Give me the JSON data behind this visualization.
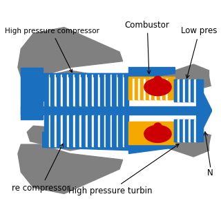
{
  "bg_color": "#ffffff",
  "blue": "#1a6fbe",
  "gray": "#808080",
  "yellow": "#f5a800",
  "red": "#cc0000",
  "black": "#000000",
  "labels": {
    "hpc": "High pressure compressor",
    "combustor": "Combustor",
    "low_pres": "Low pres",
    "lpc": "re compressor",
    "hpt": "High pressure turbin",
    "nozzle": "N"
  },
  "figsize": [
    3.2,
    3.2
  ],
  "dpi": 100
}
